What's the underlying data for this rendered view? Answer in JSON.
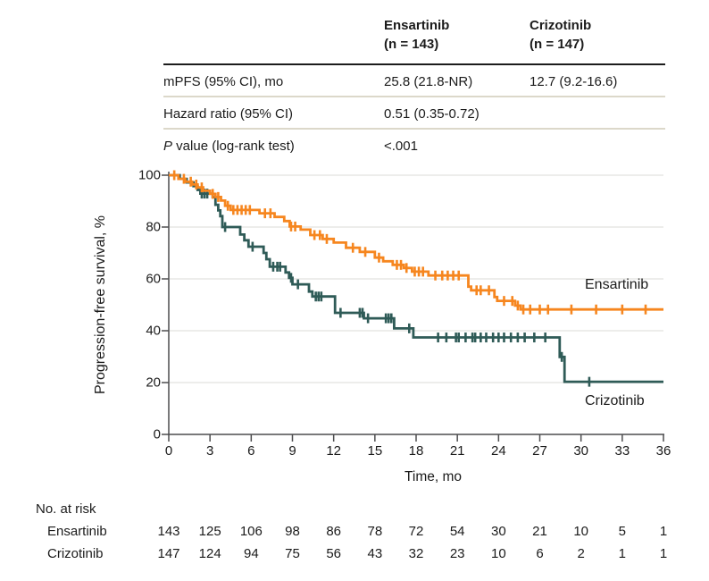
{
  "summary_table": {
    "col_headers": [
      {
        "line1": "Ensartinib",
        "line2": "(n = 143)"
      },
      {
        "line1": "Crizotinib",
        "line2": "(n = 147)"
      }
    ],
    "rows": [
      {
        "label": "mPFS (95% CI), mo",
        "col1": "25.8 (21.8-NR)",
        "col2": "12.7 (9.2-16.6)"
      },
      {
        "label": "Hazard ratio (95% CI)",
        "col1": "0.51 (0.35-0.72)",
        "col2": ""
      },
      {
        "label_italic": "P",
        "label_rest": " value (log-rank test)",
        "col1": "<.001",
        "col2": ""
      }
    ]
  },
  "chart_data": {
    "type": "line",
    "subtype": "kaplan-meier-step",
    "title": "",
    "xlabel": "Time, mo",
    "ylabel": "Progression-free survival, %",
    "xlim": [
      0,
      36
    ],
    "ylim": [
      0,
      100
    ],
    "x_ticks": [
      0,
      3,
      6,
      9,
      12,
      15,
      18,
      21,
      24,
      27,
      30,
      33,
      36
    ],
    "y_ticks": [
      0,
      20,
      40,
      60,
      80,
      100
    ],
    "gridlines": [
      20,
      40,
      60,
      80,
      100
    ],
    "grid_on": true,
    "legend_position": "inline-right",
    "colors": {
      "axis": "#4d4d4f",
      "gridline": "#e2e2df",
      "text": "#1b1b1b"
    },
    "series": [
      {
        "name": "Crizotinib",
        "color": "#2f5b57",
        "steps": [
          [
            0,
            100
          ],
          [
            0.8,
            98.6
          ],
          [
            1.3,
            97.2
          ],
          [
            1.8,
            95.8
          ],
          [
            2.1,
            94.3
          ],
          [
            2.3,
            92.9
          ],
          [
            3.2,
            91.5
          ],
          [
            3.4,
            88.6
          ],
          [
            3.6,
            86.4
          ],
          [
            3.75,
            84.2
          ],
          [
            3.9,
            80.0
          ],
          [
            5.2,
            77.1
          ],
          [
            5.5,
            74.9
          ],
          [
            5.8,
            72.4
          ],
          [
            6.9,
            70.0
          ],
          [
            7.1,
            67.6
          ],
          [
            7.35,
            64.7
          ],
          [
            8.5,
            62.5
          ],
          [
            8.75,
            60.4
          ],
          [
            9.0,
            57.9
          ],
          [
            10.2,
            55.1
          ],
          [
            10.45,
            53.2
          ],
          [
            12.1,
            46.9
          ],
          [
            14.2,
            44.8
          ],
          [
            16.4,
            40.9
          ],
          [
            17.8,
            37.4
          ],
          [
            28.45,
            29.9
          ],
          [
            28.8,
            20.3
          ],
          [
            36,
            20.3
          ]
        ],
        "censor_times": [
          2.4,
          2.6,
          2.8,
          4.1,
          6.1,
          7.6,
          7.9,
          8.1,
          8.9,
          9.4,
          10.7,
          10.9,
          11.1,
          12.5,
          13.9,
          14.1,
          14.5,
          15.8,
          16.0,
          16.2,
          17.5,
          19.6,
          20.2,
          20.9,
          21.1,
          21.6,
          22.1,
          22.3,
          22.7,
          23.1,
          23.6,
          24.0,
          24.4,
          24.9,
          25.4,
          25.9,
          26.6,
          27.4,
          28.6,
          30.6
        ]
      },
      {
        "name": "Ensartinib",
        "color": "#f6861f",
        "steps": [
          [
            0,
            100
          ],
          [
            0.7,
            98.6
          ],
          [
            1.2,
            97.5
          ],
          [
            1.7,
            96.4
          ],
          [
            2.1,
            95.3
          ],
          [
            2.5,
            94.0
          ],
          [
            3.0,
            92.8
          ],
          [
            3.4,
            91.6
          ],
          [
            3.8,
            90.2
          ],
          [
            4.1,
            88.2
          ],
          [
            4.5,
            86.6
          ],
          [
            6.6,
            85.3
          ],
          [
            7.7,
            83.9
          ],
          [
            8.4,
            82.3
          ],
          [
            8.8,
            80.2
          ],
          [
            9.6,
            79.0
          ],
          [
            10.3,
            76.9
          ],
          [
            11.2,
            75.4
          ],
          [
            12.0,
            74.0
          ],
          [
            12.9,
            72.0
          ],
          [
            13.9,
            70.4
          ],
          [
            15.0,
            68.2
          ],
          [
            15.6,
            66.8
          ],
          [
            16.3,
            65.4
          ],
          [
            17.1,
            64.2
          ],
          [
            17.7,
            62.8
          ],
          [
            18.9,
            61.3
          ],
          [
            21.8,
            57.0
          ],
          [
            22.0,
            55.6
          ],
          [
            23.7,
            53.0
          ],
          [
            23.9,
            51.5
          ],
          [
            25.2,
            49.7
          ],
          [
            25.6,
            48.2
          ],
          [
            36,
            48.2
          ]
        ],
        "censor_times": [
          0.4,
          1.1,
          1.6,
          2.0,
          2.4,
          3.2,
          3.6,
          4.3,
          4.7,
          5.0,
          5.3,
          5.6,
          5.9,
          7.0,
          7.4,
          8.9,
          9.2,
          10.6,
          11.0,
          11.5,
          13.4,
          14.3,
          15.3,
          16.6,
          16.9,
          17.3,
          17.9,
          18.2,
          18.5,
          19.4,
          19.9,
          20.3,
          20.7,
          21.1,
          22.4,
          22.7,
          23.3,
          24.4,
          25.0,
          25.4,
          25.8,
          26.3,
          27.0,
          27.6,
          29.3,
          31.1,
          33.0,
          34.7
        ]
      }
    ]
  },
  "risk_table": {
    "title": "No. at risk",
    "rows": [
      {
        "label": "Ensartinib",
        "values": [
          143,
          125,
          106,
          98,
          86,
          78,
          72,
          54,
          30,
          21,
          10,
          5,
          1
        ]
      },
      {
        "label": "Crizotinib",
        "values": [
          147,
          124,
          94,
          75,
          56,
          43,
          32,
          23,
          10,
          6,
          2,
          1,
          1
        ]
      }
    ]
  }
}
